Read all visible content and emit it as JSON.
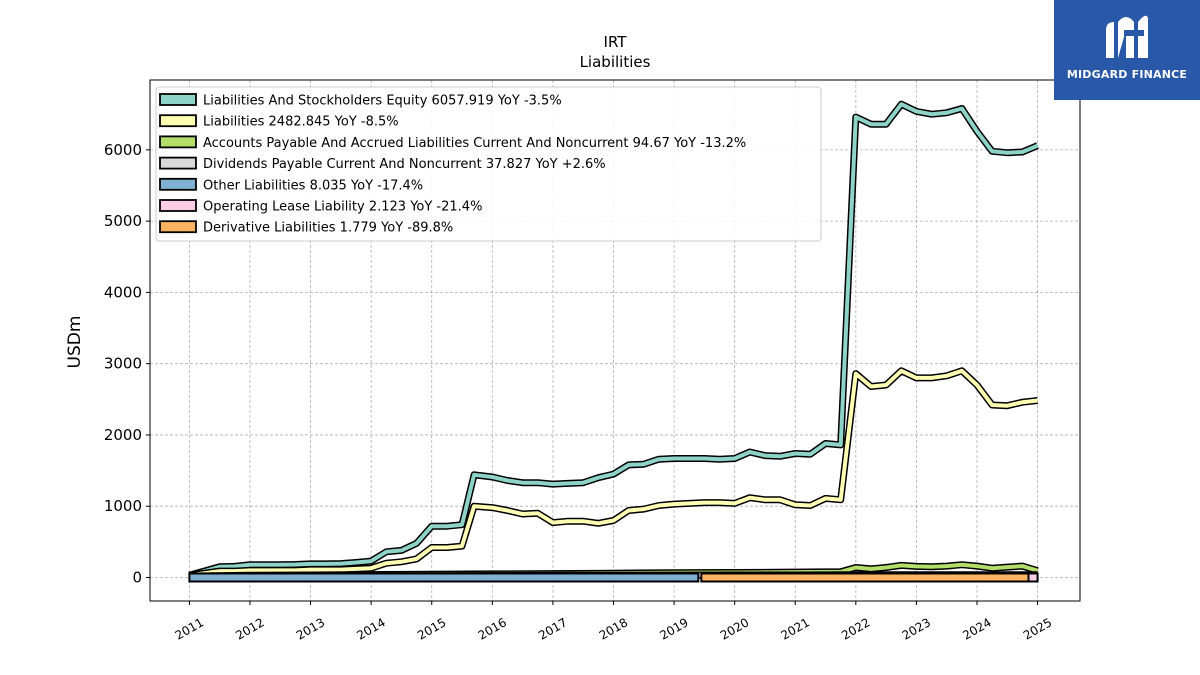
{
  "chart_data": {
    "type": "area",
    "title": "IRT",
    "subtitle": "Liabilities",
    "xlabel": "",
    "ylabel": "USDm",
    "xlim": [
      2010.35,
      2025.7
    ],
    "ylim": [
      -330,
      6980
    ],
    "yticks": [
      0,
      1000,
      2000,
      3000,
      4000,
      5000,
      6000
    ],
    "xticks": [
      "2011",
      "2012",
      "2013",
      "2014",
      "2015",
      "2016",
      "2017",
      "2018",
      "2019",
      "2020",
      "2021",
      "2022",
      "2023",
      "2024",
      "2025"
    ],
    "grid": true,
    "legend_position": "upper-left",
    "colors": {
      "equity": "#8dd3c7",
      "liabilities": "#ffffb3",
      "accounts_payable": "#b3de69",
      "dividends": "#d9d9d9",
      "other": "#80b1d3",
      "lease": "#fccde5",
      "derivative": "#fdb462"
    },
    "series": [
      {
        "key": "equity",
        "name": "Liabilities And Stockholders Equity  6057.919 YoY -3.5%",
        "color": "#8dd3c7",
        "points": [
          [
            2011.0,
            30
          ],
          [
            2011.5,
            150
          ],
          [
            2011.75,
            155
          ],
          [
            2012.0,
            180
          ],
          [
            2012.5,
            180
          ],
          [
            2012.75,
            182
          ],
          [
            2013.0,
            190
          ],
          [
            2013.25,
            190
          ],
          [
            2013.5,
            195
          ],
          [
            2013.75,
            210
          ],
          [
            2014.0,
            230
          ],
          [
            2014.25,
            360
          ],
          [
            2014.5,
            380
          ],
          [
            2014.75,
            480
          ],
          [
            2015.0,
            720
          ],
          [
            2015.25,
            720
          ],
          [
            2015.5,
            740
          ],
          [
            2015.7,
            1440
          ],
          [
            2016.0,
            1410
          ],
          [
            2016.25,
            1360
          ],
          [
            2016.5,
            1330
          ],
          [
            2016.75,
            1330
          ],
          [
            2017.0,
            1310
          ],
          [
            2017.25,
            1320
          ],
          [
            2017.5,
            1330
          ],
          [
            2017.75,
            1400
          ],
          [
            2018.0,
            1450
          ],
          [
            2018.25,
            1580
          ],
          [
            2018.5,
            1590
          ],
          [
            2018.75,
            1660
          ],
          [
            2019.0,
            1670
          ],
          [
            2019.25,
            1670
          ],
          [
            2019.5,
            1670
          ],
          [
            2019.75,
            1660
          ],
          [
            2020.0,
            1670
          ],
          [
            2020.25,
            1760
          ],
          [
            2020.5,
            1710
          ],
          [
            2020.75,
            1700
          ],
          [
            2021.0,
            1740
          ],
          [
            2021.25,
            1730
          ],
          [
            2021.5,
            1880
          ],
          [
            2021.75,
            1860
          ],
          [
            2022.0,
            6460
          ],
          [
            2022.25,
            6360
          ],
          [
            2022.5,
            6360
          ],
          [
            2022.75,
            6640
          ],
          [
            2023.0,
            6540
          ],
          [
            2023.25,
            6500
          ],
          [
            2023.5,
            6520
          ],
          [
            2023.75,
            6580
          ],
          [
            2024.0,
            6260
          ],
          [
            2024.25,
            5980
          ],
          [
            2024.5,
            5960
          ],
          [
            2024.75,
            5970
          ],
          [
            2025.0,
            6060
          ]
        ]
      },
      {
        "key": "liabilities",
        "name": "Liabilities  2482.845 YoY -8.5%",
        "color": "#ffffb3",
        "points": [
          [
            2011.0,
            30
          ],
          [
            2011.5,
            90
          ],
          [
            2011.75,
            90
          ],
          [
            2012.0,
            100
          ],
          [
            2012.5,
            100
          ],
          [
            2012.75,
            100
          ],
          [
            2013.0,
            110
          ],
          [
            2013.25,
            110
          ],
          [
            2013.5,
            110
          ],
          [
            2013.75,
            120
          ],
          [
            2014.0,
            130
          ],
          [
            2014.25,
            200
          ],
          [
            2014.5,
            220
          ],
          [
            2014.75,
            260
          ],
          [
            2015.0,
            420
          ],
          [
            2015.25,
            420
          ],
          [
            2015.5,
            440
          ],
          [
            2015.7,
            1000
          ],
          [
            2016.0,
            980
          ],
          [
            2016.25,
            940
          ],
          [
            2016.5,
            890
          ],
          [
            2016.75,
            900
          ],
          [
            2017.0,
            770
          ],
          [
            2017.25,
            790
          ],
          [
            2017.5,
            790
          ],
          [
            2017.75,
            760
          ],
          [
            2018.0,
            800
          ],
          [
            2018.25,
            940
          ],
          [
            2018.5,
            960
          ],
          [
            2018.75,
            1010
          ],
          [
            2019.0,
            1030
          ],
          [
            2019.25,
            1040
          ],
          [
            2019.5,
            1050
          ],
          [
            2019.75,
            1050
          ],
          [
            2020.0,
            1040
          ],
          [
            2020.25,
            1120
          ],
          [
            2020.5,
            1090
          ],
          [
            2020.75,
            1090
          ],
          [
            2021.0,
            1020
          ],
          [
            2021.25,
            1010
          ],
          [
            2021.5,
            1110
          ],
          [
            2021.75,
            1090
          ],
          [
            2022.0,
            2860
          ],
          [
            2022.25,
            2680
          ],
          [
            2022.5,
            2700
          ],
          [
            2022.75,
            2900
          ],
          [
            2023.0,
            2800
          ],
          [
            2023.25,
            2800
          ],
          [
            2023.5,
            2830
          ],
          [
            2023.75,
            2900
          ],
          [
            2024.0,
            2700
          ],
          [
            2024.25,
            2420
          ],
          [
            2024.5,
            2410
          ],
          [
            2024.75,
            2460
          ],
          [
            2025.0,
            2483
          ]
        ]
      },
      {
        "key": "accounts_payable",
        "name": "Accounts Payable And Accrued Liabilities Current And Noncurrent  94.67 YoY -13.2%",
        "color": "#b3de69",
        "points": [
          [
            2011.0,
            20
          ],
          [
            2012.0,
            30
          ],
          [
            2013.0,
            35
          ],
          [
            2014.0,
            40
          ],
          [
            2015.0,
            45
          ],
          [
            2016.0,
            50
          ],
          [
            2017.0,
            55
          ],
          [
            2018.0,
            60
          ],
          [
            2019.0,
            65
          ],
          [
            2020.0,
            70
          ],
          [
            2021.0,
            75
          ],
          [
            2021.75,
            80
          ],
          [
            2022.0,
            140
          ],
          [
            2022.25,
            120
          ],
          [
            2022.5,
            140
          ],
          [
            2022.75,
            170
          ],
          [
            2023.0,
            155
          ],
          [
            2023.25,
            150
          ],
          [
            2023.5,
            160
          ],
          [
            2023.75,
            180
          ],
          [
            2024.0,
            160
          ],
          [
            2024.25,
            130
          ],
          [
            2024.5,
            145
          ],
          [
            2024.75,
            160
          ],
          [
            2025.0,
            95
          ]
        ]
      },
      {
        "key": "dividends",
        "name": "Dividends Payable Current And Noncurrent  37.827 YoY +2.6%",
        "color": "#d9d9d9",
        "points": [
          [
            2011.0,
            15
          ],
          [
            2012.0,
            18
          ],
          [
            2013.0,
            20
          ],
          [
            2014.0,
            22
          ],
          [
            2015.0,
            25
          ],
          [
            2016.0,
            28
          ],
          [
            2017.0,
            30
          ],
          [
            2018.0,
            32
          ],
          [
            2019.0,
            33
          ],
          [
            2020.0,
            35
          ],
          [
            2021.0,
            35
          ],
          [
            2022.0,
            38
          ],
          [
            2023.0,
            38
          ],
          [
            2024.0,
            37
          ],
          [
            2025.0,
            38
          ]
        ]
      },
      {
        "key": "other",
        "name": "Other Liabilities  8.035 YoY -17.4%",
        "color": "#80b1d3",
        "points": [
          [
            2011.0,
            10
          ],
          [
            2012.0,
            10
          ],
          [
            2013.0,
            10
          ],
          [
            2014.0,
            10
          ],
          [
            2015.0,
            10
          ],
          [
            2016.0,
            10
          ],
          [
            2017.0,
            10
          ],
          [
            2018.0,
            10
          ],
          [
            2019.0,
            10
          ],
          [
            2019.4,
            10
          ]
        ]
      },
      {
        "key": "lease",
        "name": "Operating Lease Liability  2.123 YoY -21.4%",
        "color": "#fccde5",
        "points": [
          [
            2024.85,
            2
          ],
          [
            2025.0,
            2
          ]
        ]
      },
      {
        "key": "derivative",
        "name": "Derivative Liabilities  1.779 YoY -89.8%",
        "color": "#fdb462",
        "points": [
          [
            2019.45,
            5
          ],
          [
            2020.0,
            10
          ],
          [
            2020.5,
            30
          ],
          [
            2021.0,
            20
          ],
          [
            2021.75,
            5
          ],
          [
            2022.5,
            -15
          ],
          [
            2023.5,
            -20
          ],
          [
            2024.5,
            -10
          ],
          [
            2024.85,
            2
          ]
        ]
      }
    ]
  },
  "brand": {
    "name": "MIDGARD FINANCE",
    "logo_icon": "midgard-m-icon"
  }
}
